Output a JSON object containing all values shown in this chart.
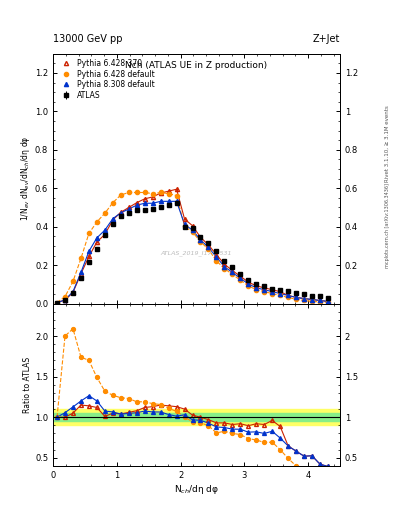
{
  "title_top": "13000 GeV pp",
  "title_right": "Z+Jet",
  "plot_title": "Nch (ATLAS UE in Z production)",
  "ylabel_main": "1/N$_{ev}$ dN$_{ev}$/dN$_{ch}$/dη dφ",
  "ylabel_ratio": "Ratio to ATLAS",
  "xlabel": "N$_{ch}$/dη dφ",
  "right_label_main": "Rivet 3.1.10, ≥ 3.1M events",
  "right_label_ref": "mcplots.cern.ch [arXiv:1306.3436]",
  "watermark": "ATLAS_2019_I1736531",
  "ylim_main": [
    0.0,
    1.3
  ],
  "ylim_ratio": [
    0.4,
    2.4
  ],
  "xlim": [
    0.0,
    4.5
  ],
  "yticks_main": [
    0.0,
    0.2,
    0.4,
    0.6,
    0.8,
    1.0,
    1.2
  ],
  "yticks_ratio": [
    0.5,
    1.0,
    1.5,
    2.0
  ],
  "xticks": [
    0.0,
    1.0,
    2.0,
    3.0,
    4.0
  ],
  "atlas_x": [
    0.0625,
    0.1875,
    0.3125,
    0.4375,
    0.5625,
    0.6875,
    0.8125,
    0.9375,
    1.0625,
    1.1875,
    1.3125,
    1.4375,
    1.5625,
    1.6875,
    1.8125,
    1.9375,
    2.0625,
    2.1875,
    2.3125,
    2.4375,
    2.5625,
    2.6875,
    2.8125,
    2.9375,
    3.0625,
    3.1875,
    3.3125,
    3.4375,
    3.5625,
    3.6875,
    3.8125,
    3.9375,
    4.0625,
    4.1875,
    4.3125
  ],
  "atlas_y": [
    0.005,
    0.018,
    0.055,
    0.135,
    0.215,
    0.285,
    0.355,
    0.415,
    0.455,
    0.47,
    0.485,
    0.485,
    0.49,
    0.5,
    0.515,
    0.525,
    0.4,
    0.395,
    0.345,
    0.315,
    0.275,
    0.22,
    0.19,
    0.155,
    0.125,
    0.1,
    0.09,
    0.075,
    0.07,
    0.065,
    0.055,
    0.05,
    0.04,
    0.038,
    0.028
  ],
  "atlas_yerr": [
    0.001,
    0.002,
    0.004,
    0.006,
    0.007,
    0.008,
    0.008,
    0.008,
    0.008,
    0.008,
    0.008,
    0.008,
    0.008,
    0.008,
    0.008,
    0.008,
    0.008,
    0.008,
    0.007,
    0.007,
    0.007,
    0.006,
    0.006,
    0.005,
    0.005,
    0.005,
    0.004,
    0.004,
    0.004,
    0.003,
    0.003,
    0.003,
    0.003,
    0.003,
    0.002
  ],
  "p6_370_x": [
    0.0625,
    0.1875,
    0.3125,
    0.4375,
    0.5625,
    0.6875,
    0.8125,
    0.9375,
    1.0625,
    1.1875,
    1.3125,
    1.4375,
    1.5625,
    1.6875,
    1.8125,
    1.9375,
    2.0625,
    2.1875,
    2.3125,
    2.4375,
    2.5625,
    2.6875,
    2.8125,
    2.9375,
    3.0625,
    3.1875,
    3.3125,
    3.4375,
    3.5625,
    3.6875,
    3.8125,
    3.9375,
    4.0625,
    4.1875,
    4.3125
  ],
  "p6_370_y": [
    0.005,
    0.018,
    0.058,
    0.155,
    0.245,
    0.32,
    0.36,
    0.435,
    0.475,
    0.5,
    0.525,
    0.545,
    0.555,
    0.575,
    0.585,
    0.595,
    0.44,
    0.405,
    0.345,
    0.305,
    0.255,
    0.205,
    0.172,
    0.142,
    0.112,
    0.092,
    0.082,
    0.072,
    0.062,
    0.042,
    0.032,
    0.026,
    0.021,
    0.016,
    0.011
  ],
  "p6_370_yerr": [
    0.001,
    0.001,
    0.003,
    0.005,
    0.006,
    0.007,
    0.007,
    0.007,
    0.007,
    0.007,
    0.007,
    0.007,
    0.007,
    0.007,
    0.007,
    0.007,
    0.007,
    0.006,
    0.006,
    0.006,
    0.005,
    0.005,
    0.004,
    0.004,
    0.004,
    0.003,
    0.003,
    0.003,
    0.003,
    0.002,
    0.002,
    0.002,
    0.001,
    0.001,
    0.001
  ],
  "p6_def_x": [
    0.0625,
    0.1875,
    0.3125,
    0.4375,
    0.5625,
    0.6875,
    0.8125,
    0.9375,
    1.0625,
    1.1875,
    1.3125,
    1.4375,
    1.5625,
    1.6875,
    1.8125,
    1.9375,
    2.0625,
    2.1875,
    2.3125,
    2.4375,
    2.5625,
    2.6875,
    2.8125,
    2.9375,
    3.0625,
    3.1875,
    3.3125,
    3.4375,
    3.5625,
    3.6875,
    3.8125,
    3.9375,
    4.0625,
    4.1875,
    4.3125
  ],
  "p6_def_y": [
    0.005,
    0.036,
    0.115,
    0.235,
    0.365,
    0.425,
    0.47,
    0.525,
    0.565,
    0.578,
    0.578,
    0.578,
    0.572,
    0.578,
    0.572,
    0.562,
    0.402,
    0.372,
    0.322,
    0.282,
    0.222,
    0.182,
    0.152,
    0.122,
    0.092,
    0.072,
    0.062,
    0.052,
    0.042,
    0.032,
    0.022,
    0.016,
    0.011,
    0.009,
    0.006
  ],
  "p6_def_yerr": [
    0.001,
    0.002,
    0.005,
    0.007,
    0.008,
    0.008,
    0.008,
    0.008,
    0.008,
    0.008,
    0.008,
    0.008,
    0.008,
    0.008,
    0.008,
    0.008,
    0.008,
    0.007,
    0.006,
    0.006,
    0.006,
    0.005,
    0.005,
    0.004,
    0.004,
    0.003,
    0.003,
    0.003,
    0.002,
    0.002,
    0.002,
    0.001,
    0.001,
    0.001,
    0.001
  ],
  "p8_def_x": [
    0.0625,
    0.1875,
    0.3125,
    0.4375,
    0.5625,
    0.6875,
    0.8125,
    0.9375,
    1.0625,
    1.1875,
    1.3125,
    1.4375,
    1.5625,
    1.6875,
    1.8125,
    1.9375,
    2.0625,
    2.1875,
    2.3125,
    2.4375,
    2.5625,
    2.6875,
    2.8125,
    2.9375,
    3.0625,
    3.1875,
    3.3125,
    3.4375,
    3.5625,
    3.6875,
    3.8125,
    3.9375,
    4.0625,
    4.1875,
    4.3125
  ],
  "p8_def_y": [
    0.005,
    0.019,
    0.062,
    0.162,
    0.272,
    0.342,
    0.382,
    0.442,
    0.472,
    0.492,
    0.512,
    0.522,
    0.522,
    0.532,
    0.532,
    0.532,
    0.412,
    0.382,
    0.332,
    0.292,
    0.242,
    0.192,
    0.162,
    0.132,
    0.102,
    0.082,
    0.072,
    0.062,
    0.052,
    0.042,
    0.032,
    0.026,
    0.021,
    0.016,
    0.011
  ],
  "p8_def_yerr": [
    0.001,
    0.001,
    0.003,
    0.005,
    0.006,
    0.007,
    0.007,
    0.007,
    0.007,
    0.007,
    0.007,
    0.007,
    0.007,
    0.007,
    0.007,
    0.007,
    0.007,
    0.006,
    0.006,
    0.006,
    0.005,
    0.005,
    0.004,
    0.004,
    0.004,
    0.003,
    0.003,
    0.003,
    0.003,
    0.002,
    0.002,
    0.002,
    0.001,
    0.001,
    0.001
  ],
  "ratio_p6_370_y": [
    1.0,
    1.0,
    1.05,
    1.15,
    1.14,
    1.12,
    1.01,
    1.05,
    1.04,
    1.06,
    1.08,
    1.12,
    1.13,
    1.15,
    1.14,
    1.13,
    1.1,
    1.025,
    1.0,
    0.97,
    0.93,
    0.93,
    0.91,
    0.92,
    0.895,
    0.92,
    0.91,
    0.96,
    0.886,
    0.646,
    0.582,
    0.52,
    0.525,
    0.421,
    0.393
  ],
  "ratio_p6_def_y": [
    1.0,
    2.0,
    2.09,
    1.74,
    1.7,
    1.49,
    1.32,
    1.27,
    1.24,
    1.23,
    1.19,
    1.19,
    1.167,
    1.156,
    1.111,
    1.071,
    1.005,
    0.942,
    0.932,
    0.895,
    0.807,
    0.827,
    0.8,
    0.787,
    0.736,
    0.72,
    0.689,
    0.693,
    0.6,
    0.492,
    0.4,
    0.32,
    0.275,
    0.237,
    0.214
  ],
  "ratio_p8_def_y": [
    1.0,
    1.056,
    1.127,
    1.2,
    1.265,
    1.2,
    1.076,
    1.065,
    1.038,
    1.047,
    1.056,
    1.076,
    1.065,
    1.064,
    1.033,
    1.013,
    1.03,
    0.968,
    0.962,
    0.927,
    0.88,
    0.873,
    0.853,
    0.852,
    0.816,
    0.82,
    0.8,
    0.827,
    0.743,
    0.646,
    0.582,
    0.52,
    0.525,
    0.421,
    0.393
  ],
  "color_atlas": "#000000",
  "color_p6_370": "#cc2200",
  "color_p6_def": "#ff8c00",
  "color_p8_def": "#0033cc",
  "band_green_inner": 0.05,
  "band_yellow_outer": 0.1,
  "background_color": "#ffffff"
}
